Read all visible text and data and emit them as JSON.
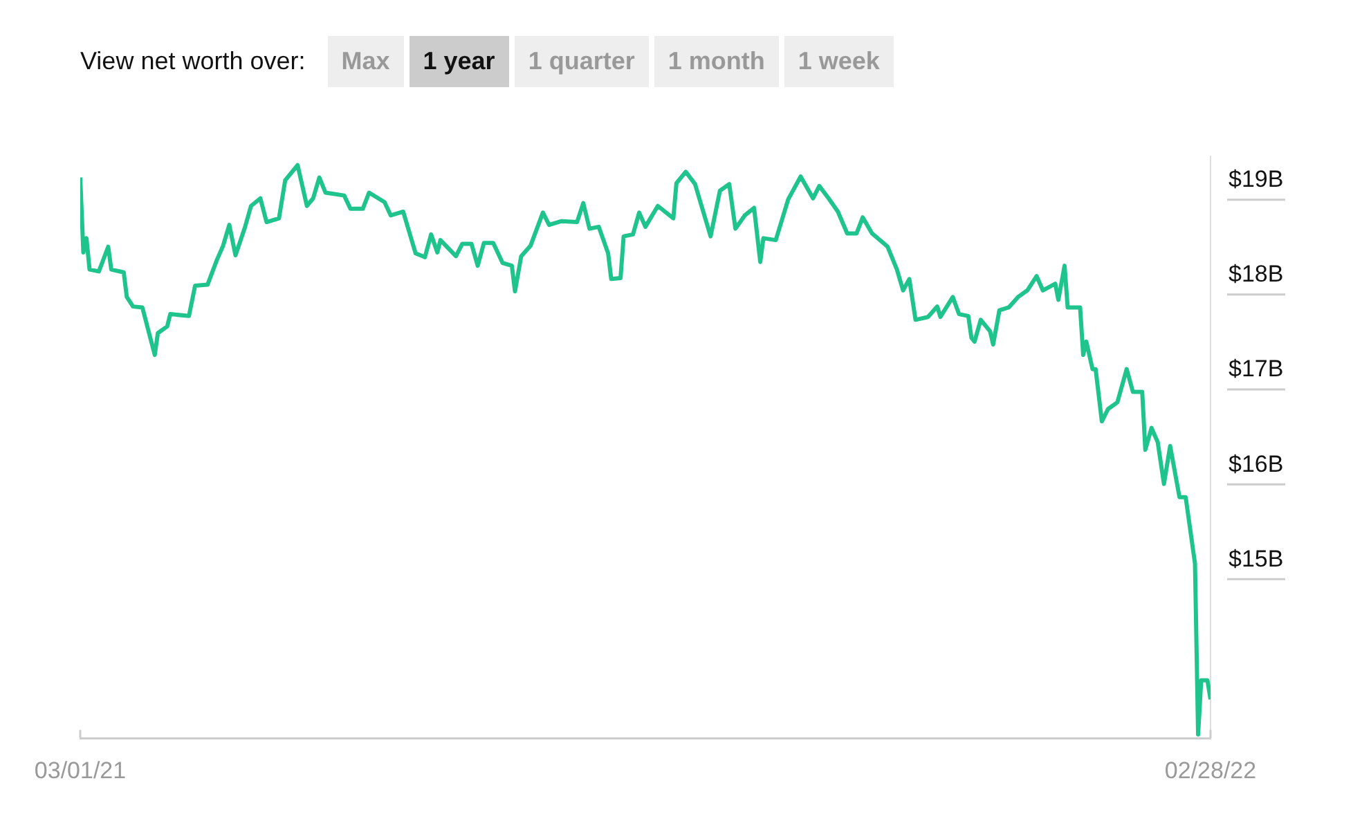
{
  "chart_data": {
    "type": "line",
    "title": "View net worth over:",
    "annotations": [
      "Max",
      "1 year",
      "1 quarter",
      "1 month",
      "1 week"
    ],
    "xlim": [
      "2021-03-01",
      "2022-02-28"
    ],
    "xticks": [
      {
        "value": "2021-03-01",
        "label": "03/01/21"
      },
      {
        "value": "2022-02-28",
        "label": "02/28/22"
      }
    ],
    "ylim": [
      13.12,
      19.25
    ],
    "yticks": [
      {
        "value": 15,
        "label": "$15B"
      },
      {
        "value": 16,
        "label": "$16B"
      },
      {
        "value": 17,
        "label": "$17B"
      },
      {
        "value": 18,
        "label": "$18B"
      },
      {
        "value": 19,
        "label": "$19B"
      }
    ],
    "grid": false,
    "legend": false,
    "marker": "none",
    "line_style": "solid",
    "series": [
      {
        "color": "#1ec48b",
        "x": [
          "2021-03-01",
          "2021-03-02",
          "2021-03-03",
          "2021-03-04",
          "2021-03-07",
          "2021-03-10",
          "2021-03-11",
          "2021-03-15",
          "2021-03-16",
          "2021-03-18",
          "2021-03-21",
          "2021-03-25",
          "2021-03-26",
          "2021-03-29",
          "2021-03-30",
          "2021-04-05",
          "2021-04-07",
          "2021-04-11",
          "2021-04-14",
          "2021-04-16",
          "2021-04-18",
          "2021-04-20",
          "2021-04-23",
          "2021-04-25",
          "2021-04-28",
          "2021-04-30",
          "2021-05-04",
          "2021-05-06",
          "2021-05-10",
          "2021-05-13",
          "2021-05-15",
          "2021-05-17",
          "2021-05-19",
          "2021-05-25",
          "2021-05-27",
          "2021-05-31",
          "2021-06-02",
          "2021-06-07",
          "2021-06-09",
          "2021-06-13",
          "2021-06-17",
          "2021-06-20",
          "2021-06-22",
          "2021-06-24",
          "2021-06-25",
          "2021-06-30",
          "2021-07-02",
          "2021-07-05",
          "2021-07-07",
          "2021-07-09",
          "2021-07-12",
          "2021-07-15",
          "2021-07-18",
          "2021-07-19",
          "2021-07-21",
          "2021-07-24",
          "2021-07-28",
          "2021-07-30",
          "2021-08-03",
          "2021-08-08",
          "2021-08-10",
          "2021-08-12",
          "2021-08-15",
          "2021-08-18",
          "2021-08-19",
          "2021-08-22",
          "2021-08-23",
          "2021-08-26",
          "2021-08-28",
          "2021-08-30",
          "2021-09-03",
          "2021-09-08",
          "2021-09-09",
          "2021-09-12",
          "2021-09-15",
          "2021-09-17",
          "2021-09-20",
          "2021-09-23",
          "2021-09-26",
          "2021-09-28",
          "2021-10-01",
          "2021-10-04",
          "2021-10-06",
          "2021-10-07",
          "2021-10-11",
          "2021-10-15",
          "2021-10-19",
          "2021-10-23",
          "2021-10-25",
          "2021-10-28",
          "2021-10-31",
          "2021-11-03",
          "2021-11-06",
          "2021-11-08",
          "2021-11-11",
          "2021-11-15",
          "2021-11-16",
          "2021-11-19",
          "2021-11-21",
          "2021-11-23",
          "2021-11-25",
          "2021-11-29",
          "2021-12-02",
          "2021-12-03",
          "2021-12-07",
          "2021-12-09",
          "2021-12-12",
          "2021-12-13",
          "2021-12-14",
          "2021-12-16",
          "2021-12-19",
          "2021-12-20",
          "2021-12-22",
          "2021-12-25",
          "2021-12-28",
          "2021-12-31",
          "2022-01-03",
          "2022-01-05",
          "2022-01-09",
          "2022-01-10",
          "2022-01-12",
          "2022-01-13",
          "2022-01-17",
          "2022-01-18",
          "2022-01-19",
          "2022-01-21",
          "2022-01-22",
          "2022-01-24",
          "2022-01-26",
          "2022-01-29",
          "2022-02-01",
          "2022-02-03",
          "2022-02-06",
          "2022-02-07",
          "2022-02-09",
          "2022-02-11",
          "2022-02-13",
          "2022-02-15",
          "2022-02-18",
          "2022-02-20",
          "2022-02-23",
          "2022-02-24",
          "2022-02-25",
          "2022-02-27",
          "2022-02-28"
        ],
        "values": [
          19.03,
          18.24,
          18.39,
          18.06,
          18.04,
          18.3,
          18.06,
          18.03,
          17.77,
          17.67,
          17.66,
          17.16,
          17.39,
          17.46,
          17.59,
          17.57,
          17.89,
          17.9,
          18.16,
          18.31,
          18.53,
          18.21,
          18.5,
          18.73,
          18.81,
          18.56,
          18.6,
          19.0,
          19.16,
          18.73,
          18.81,
          19.03,
          18.87,
          18.84,
          18.7,
          18.7,
          18.87,
          18.77,
          18.63,
          18.67,
          18.23,
          18.19,
          18.43,
          18.24,
          18.37,
          18.2,
          18.33,
          18.33,
          18.1,
          18.34,
          18.34,
          18.13,
          18.1,
          17.83,
          18.2,
          18.31,
          18.66,
          18.53,
          18.57,
          18.56,
          18.76,
          18.49,
          18.51,
          18.23,
          17.96,
          17.97,
          18.41,
          18.43,
          18.66,
          18.51,
          18.73,
          18.6,
          18.97,
          19.09,
          18.96,
          18.74,
          18.41,
          18.89,
          18.96,
          18.49,
          18.63,
          18.71,
          18.14,
          18.39,
          18.37,
          18.8,
          19.04,
          18.81,
          18.94,
          18.81,
          18.67,
          18.44,
          18.44,
          18.61,
          18.44,
          18.33,
          18.3,
          18.06,
          17.84,
          17.96,
          17.53,
          17.56,
          17.67,
          17.56,
          17.77,
          17.59,
          17.57,
          17.34,
          17.3,
          17.53,
          17.41,
          17.27,
          17.63,
          17.66,
          17.77,
          17.84,
          17.99,
          17.84,
          17.91,
          17.74,
          18.1,
          17.66,
          17.66,
          17.16,
          17.3,
          17.01,
          17.01,
          16.46,
          16.59,
          16.66,
          17.01,
          16.77,
          16.77,
          16.16,
          16.39,
          16.24,
          15.8,
          16.2,
          15.66,
          15.66,
          14.96,
          13.16,
          13.73,
          13.73,
          13.53
        ]
      }
    ]
  }
}
